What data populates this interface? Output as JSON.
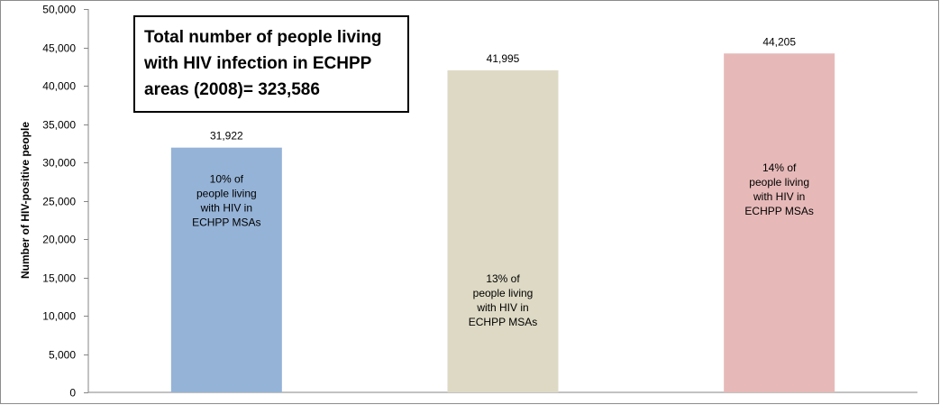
{
  "chart_data": {
    "type": "bar",
    "title": "",
    "xlabel": "",
    "ylabel": "Number of HIV-positive people",
    "ylim": [
      0,
      50000
    ],
    "yticks": [
      0,
      5000,
      10000,
      15000,
      20000,
      25000,
      30000,
      35000,
      40000,
      45000,
      50000
    ],
    "ytick_labels": [
      "0",
      "5,000",
      "10,000",
      "15,000",
      "20,000",
      "25,000",
      "30,000",
      "35,000",
      "40,000",
      "45,000",
      "50,000"
    ],
    "grid": false,
    "legend": "none",
    "categories": [
      "",
      "",
      ""
    ],
    "values": [
      31922,
      41995,
      44205
    ],
    "value_labels": [
      "31,922",
      "41,995",
      "44,205"
    ],
    "bar_colors": [
      "#95B3D7",
      "#DDD9C4",
      "#E6B9B8"
    ],
    "inner_labels": [
      [
        "10% of",
        "people living",
        "with HIV in",
        "ECHPP MSAs"
      ],
      [
        "13% of",
        "people living",
        "with HIV in",
        "ECHPP MSAs"
      ],
      [
        "14% of",
        "people living",
        "with HIV in",
        "ECHPP MSAs"
      ]
    ],
    "inner_label_values": [
      25000,
      12000,
      26500
    ],
    "annotation": [
      "Total number of people living",
      "with HIV infection in ECHPP",
      "areas (2008)= 323,586"
    ]
  }
}
